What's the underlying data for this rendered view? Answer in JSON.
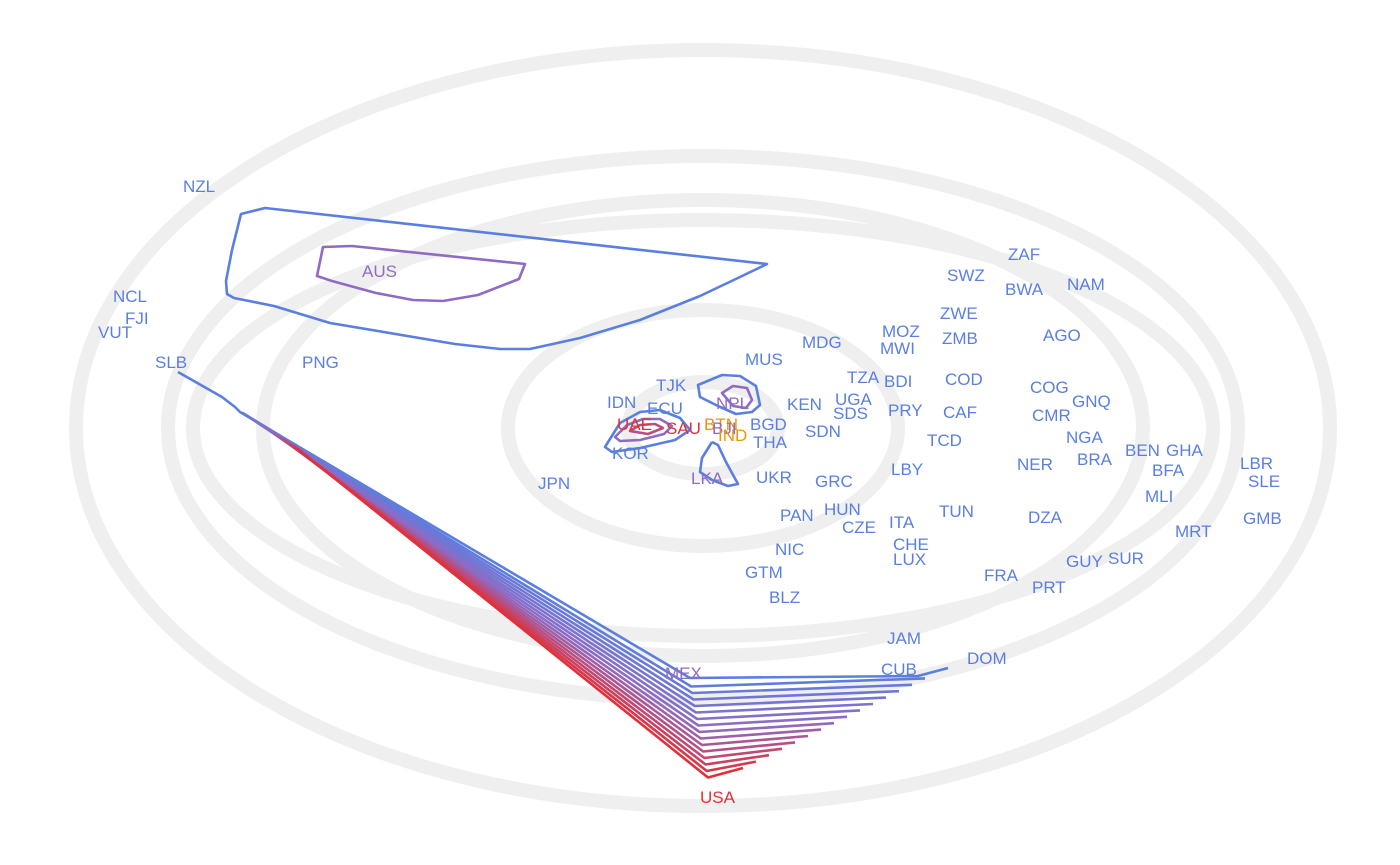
{
  "colors": {
    "background": "#ffffff",
    "rings": "#efefef",
    "low": "#5a7fe0",
    "mid": "#8f6bc4",
    "high": "#e0303a",
    "highlight": "#e8960a"
  },
  "labels": [
    {
      "text": "NZL",
      "color": "#5a7fe0"
    },
    {
      "text": "AUS",
      "color": "#8f6bc4"
    },
    {
      "text": "NCL",
      "color": "#5a7fe0"
    },
    {
      "text": "FJI",
      "color": "#5a7fe0"
    },
    {
      "text": "VUT",
      "color": "#5a7fe0"
    },
    {
      "text": "SLB",
      "color": "#5a7fe0"
    },
    {
      "text": "PNG",
      "color": "#5a7fe0"
    },
    {
      "text": "ZAF",
      "color": "#5a7fe0"
    },
    {
      "text": "SWZ",
      "color": "#5a7fe0"
    },
    {
      "text": "BWA",
      "color": "#5a7fe0"
    },
    {
      "text": "NAM",
      "color": "#5a7fe0"
    },
    {
      "text": "ZWE",
      "color": "#5a7fe0"
    },
    {
      "text": "MOZ",
      "color": "#5a7fe0"
    },
    {
      "text": "ZMB",
      "color": "#5a7fe0"
    },
    {
      "text": "MWI",
      "color": "#5a7fe0"
    },
    {
      "text": "MDG",
      "color": "#5a7fe0"
    },
    {
      "text": "AGO",
      "color": "#5a7fe0"
    },
    {
      "text": "MUS",
      "color": "#5a7fe0"
    },
    {
      "text": "TZA",
      "color": "#5a7fe0"
    },
    {
      "text": "BDI",
      "color": "#5a7fe0"
    },
    {
      "text": "COD",
      "color": "#5a7fe0"
    },
    {
      "text": "COG",
      "color": "#5a7fe0"
    },
    {
      "text": "TJK",
      "color": "#5a7fe0"
    },
    {
      "text": "NPL",
      "color": "#8f6bc4"
    },
    {
      "text": "UGA",
      "color": "#5a7fe0"
    },
    {
      "text": "KEN",
      "color": "#5a7fe0"
    },
    {
      "text": "GNQ",
      "color": "#5a7fe0"
    },
    {
      "text": "IDN",
      "color": "#5a7fe0"
    },
    {
      "text": "ECU",
      "color": "#5a7fe0"
    },
    {
      "text": "SDS",
      "color": "#5a7fe0"
    },
    {
      "text": "PRY",
      "color": "#5a7fe0"
    },
    {
      "text": "CAF",
      "color": "#5a7fe0"
    },
    {
      "text": "CMR",
      "color": "#5a7fe0"
    },
    {
      "text": "UAE",
      "color": "#e0303a"
    },
    {
      "text": "SAU",
      "color": "#e0303a"
    },
    {
      "text": "BGD",
      "color": "#5a7fe0"
    },
    {
      "text": "BTN",
      "color": "#e8960a"
    },
    {
      "text": "BJI",
      "color": "#8f6bc4"
    },
    {
      "text": "SDN",
      "color": "#5a7fe0"
    },
    {
      "text": "IND",
      "color": "#e8960a"
    },
    {
      "text": "THA",
      "color": "#5a7fe0"
    },
    {
      "text": "TCD",
      "color": "#5a7fe0"
    },
    {
      "text": "NGA",
      "color": "#5a7fe0"
    },
    {
      "text": "KOR",
      "color": "#5a7fe0"
    },
    {
      "text": "BEN",
      "color": "#5a7fe0"
    },
    {
      "text": "GHA",
      "color": "#5a7fe0"
    },
    {
      "text": "BRA",
      "color": "#5a7fe0"
    },
    {
      "text": "NER",
      "color": "#5a7fe0"
    },
    {
      "text": "LBR",
      "color": "#5a7fe0"
    },
    {
      "text": "LKA",
      "color": "#8f6bc4"
    },
    {
      "text": "UKR",
      "color": "#5a7fe0"
    },
    {
      "text": "LBY",
      "color": "#5a7fe0"
    },
    {
      "text": "BFA",
      "color": "#5a7fe0"
    },
    {
      "text": "SLE",
      "color": "#5a7fe0"
    },
    {
      "text": "JPN",
      "color": "#5a7fe0"
    },
    {
      "text": "GRC",
      "color": "#5a7fe0"
    },
    {
      "text": "MLI",
      "color": "#5a7fe0"
    },
    {
      "text": "HUN",
      "color": "#5a7fe0"
    },
    {
      "text": "TUN",
      "color": "#5a7fe0"
    },
    {
      "text": "PAN",
      "color": "#5a7fe0"
    },
    {
      "text": "DZA",
      "color": "#5a7fe0"
    },
    {
      "text": "GMB",
      "color": "#5a7fe0"
    },
    {
      "text": "ITA",
      "color": "#5a7fe0"
    },
    {
      "text": "CZE",
      "color": "#5a7fe0"
    },
    {
      "text": "MRT",
      "color": "#5a7fe0"
    },
    {
      "text": "CHE",
      "color": "#5a7fe0"
    },
    {
      "text": "NIC",
      "color": "#5a7fe0"
    },
    {
      "text": "LUX",
      "color": "#5a7fe0"
    },
    {
      "text": "SUR",
      "color": "#5a7fe0"
    },
    {
      "text": "GUY",
      "color": "#5a7fe0"
    },
    {
      "text": "GTM",
      "color": "#5a7fe0"
    },
    {
      "text": "FRA",
      "color": "#5a7fe0"
    },
    {
      "text": "PRT",
      "color": "#5a7fe0"
    },
    {
      "text": "BLZ",
      "color": "#5a7fe0"
    },
    {
      "text": "JAM",
      "color": "#5a7fe0"
    },
    {
      "text": "DOM",
      "color": "#5a7fe0"
    },
    {
      "text": "MEX",
      "color": "#8f6bc4"
    },
    {
      "text": "CUB",
      "color": "#5a7fe0"
    },
    {
      "text": "USA",
      "color": "#e0303a"
    }
  ]
}
